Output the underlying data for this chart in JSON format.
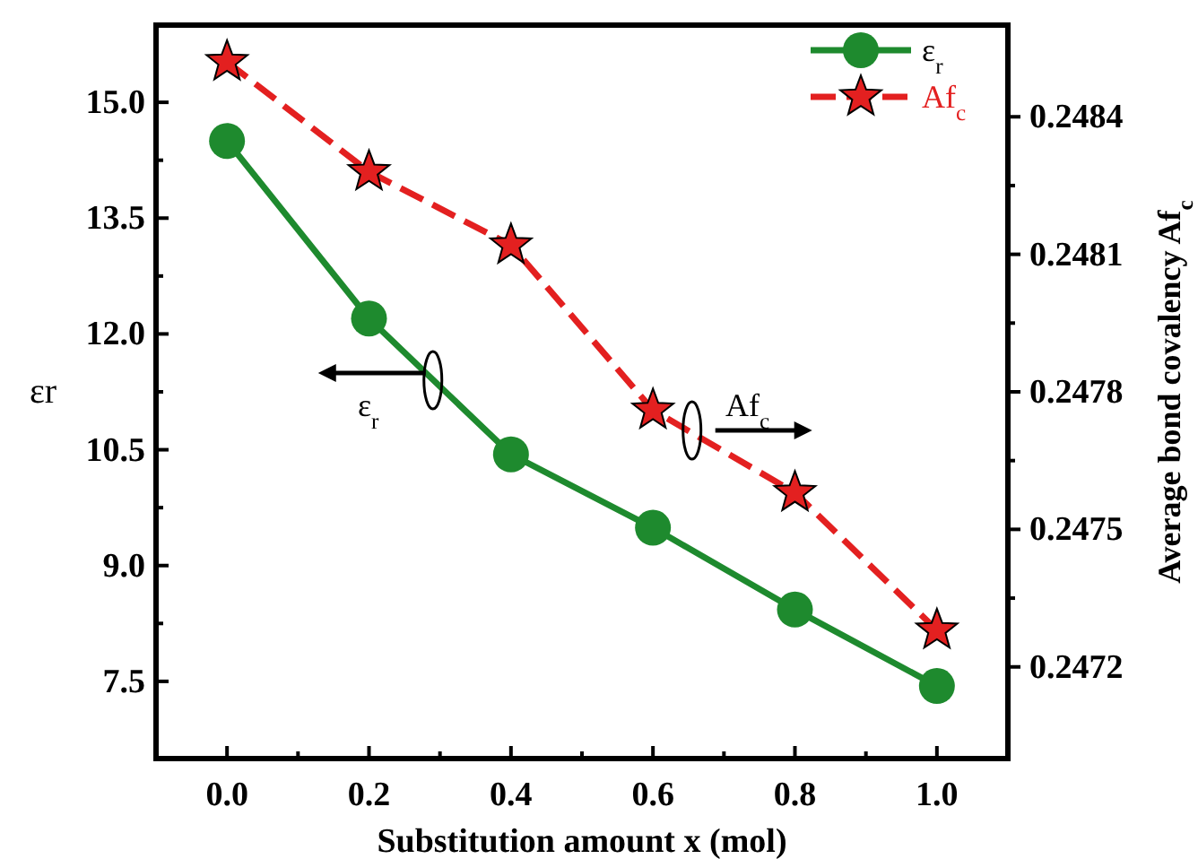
{
  "chart_data": {
    "type": "line",
    "xlabel": "Substitution amount x (mol)",
    "ylabel": "εr",
    "y2label": "Average bond covalency Af$_{c}$",
    "x": [
      0.0,
      0.2,
      0.4,
      0.6,
      0.8,
      1.0
    ],
    "xlim": [
      -0.1,
      1.1
    ],
    "xticks": [
      {
        "value": 0.0,
        "label": "0.0"
      },
      {
        "value": 0.1,
        "label": null
      },
      {
        "value": 0.2,
        "label": "0.2"
      },
      {
        "value": 0.3,
        "label": null
      },
      {
        "value": 0.4,
        "label": "0.4"
      },
      {
        "value": 0.5,
        "label": null
      },
      {
        "value": 0.6,
        "label": "0.6"
      },
      {
        "value": 0.7,
        "label": null
      },
      {
        "value": 0.8,
        "label": "0.8"
      },
      {
        "value": 0.9,
        "label": null
      },
      {
        "value": 1.0,
        "label": "1.0"
      }
    ],
    "ylim": [
      6.5,
      16
    ],
    "yticks": [
      {
        "value": 7.5,
        "label": "7.5"
      },
      {
        "value": 8.25,
        "label": null
      },
      {
        "value": 9.0,
        "label": "9.0"
      },
      {
        "value": 9.75,
        "label": null
      },
      {
        "value": 10.5,
        "label": "10.5"
      },
      {
        "value": 11.25,
        "label": null
      },
      {
        "value": 12.0,
        "label": "12.0"
      },
      {
        "value": 12.75,
        "label": null
      },
      {
        "value": 13.5,
        "label": "13.5"
      },
      {
        "value": 14.25,
        "label": null
      },
      {
        "value": 15.0,
        "label": "15.0"
      }
    ],
    "y2lim": [
      0.247,
      0.2486
    ],
    "y2ticks": [
      0.2472,
      {
        "value": 0.24735,
        "label": null
      },
      0.2475,
      {
        "value": 0.24765,
        "label": null
      },
      0.2478,
      {
        "value": 0.24795,
        "label": null
      },
      0.2481,
      {
        "value": 0.24825,
        "label": null
      },
      0.2484
    ],
    "series": [
      {
        "name": "ε$_{r}$",
        "color": "#1e8a2e",
        "marker": "circle",
        "line_style": "solid",
        "values": [
          14.5,
          12.2,
          10.44,
          9.49,
          8.43,
          7.44
        ]
      },
      {
        "name": "Af$_{c}$",
        "color": "#e32020",
        "marker": "star",
        "line_style": "dashed",
        "axis": "y2",
        "values": [
          0.24852,
          0.24828,
          0.24812,
          0.24776,
          0.24758,
          0.24728
        ]
      }
    ],
    "annotations": [
      {
        "text": "ε$_{r}$",
        "x": 0.29,
        "y": 11.4
      },
      {
        "text": "Af$_{c}$",
        "x": 0.655,
        "y": 10.75
      }
    ],
    "legend": "top right",
    "grid": false
  }
}
